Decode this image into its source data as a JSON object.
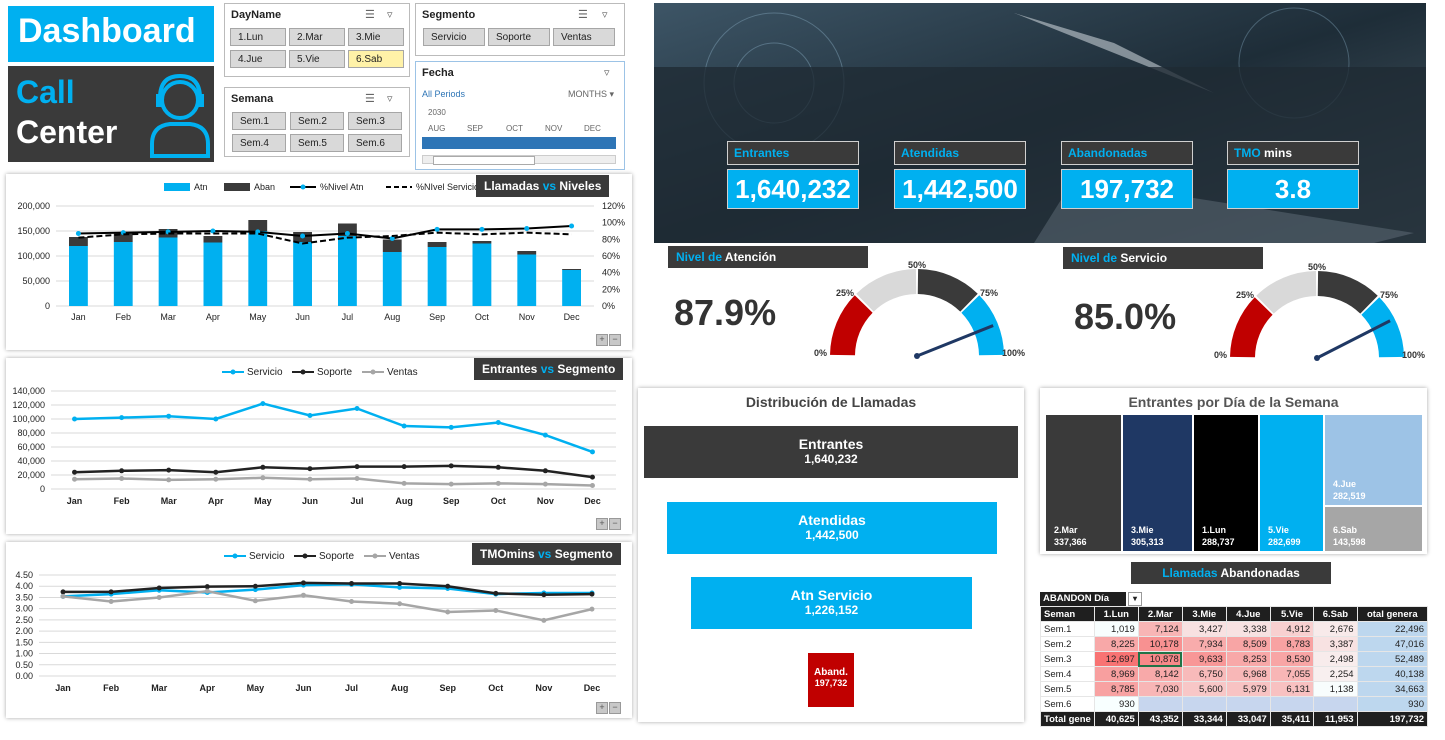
{
  "logo": {
    "line1": "Dashboard",
    "line2a": "Call",
    "line2b": "Center"
  },
  "slicers": {
    "dayname": {
      "title": "DayName",
      "items": [
        "1.Lun",
        "2.Mar",
        "3.Mie",
        "4.Jue",
        "5.Vie",
        "6.Sab"
      ],
      "selected": "6.Sab"
    },
    "segmento": {
      "title": "Segmento",
      "items": [
        "Servicio",
        "Soporte",
        "Ventas"
      ]
    },
    "semana": {
      "title": "Semana",
      "items": [
        "Sem.1",
        "Sem.2",
        "Sem.3",
        "Sem.4",
        "Sem.5",
        "Sem.6"
      ]
    },
    "fecha": {
      "title": "Fecha",
      "all_periods": "All Periods",
      "level": "MONTHS",
      "year": "2030",
      "months": [
        "AUG",
        "SEP",
        "OCT",
        "NOV",
        "DEC"
      ]
    }
  },
  "kpis": [
    {
      "label": "Entrantes",
      "label_suffix": "",
      "value": "1,640,232"
    },
    {
      "label": "Atendidas",
      "label_suffix": "",
      "value": "1,442,500"
    },
    {
      "label": "Abandonadas",
      "label_suffix": "",
      "value": "197,732"
    },
    {
      "label": "TMO",
      "label_suffix": " mins",
      "value": "3.8"
    }
  ],
  "gauges": [
    {
      "title_a": "Nivel de",
      "title_b": " Atención",
      "value_text": "87.9%",
      "value": 87.9,
      "ticks": [
        "0%",
        "25%",
        "50%",
        "75%",
        "100%"
      ]
    },
    {
      "title_a": "Nivel de",
      "title_b": " Servicio",
      "value_text": "85.0%",
      "value": 85.0,
      "ticks": [
        "0%",
        "25%",
        "50%",
        "75%",
        "100%"
      ]
    }
  ],
  "colors": {
    "blue": "#00b0f0",
    "dark": "#3a3a3a",
    "black": "#000000",
    "navy": "#1f3864",
    "gray": "#a6a6a6",
    "light_blue": "#9dc3e6",
    "red": "#c00000",
    "light_gray": "#d9d9d9"
  },
  "funnel": {
    "title": "Distribución de Llamadas",
    "items": [
      {
        "label": "Entrantes",
        "value": "1,640,232"
      },
      {
        "label": "Atendidas",
        "value": "1,442,500"
      },
      {
        "label": "Atn Servicio",
        "value": "1,226,152"
      },
      {
        "label": "Aband.",
        "value": "197,732"
      }
    ]
  },
  "treemap": {
    "title": "Entrantes por Día de la Semana",
    "items": [
      {
        "label": "2.Mar",
        "value": "337,366"
      },
      {
        "label": "3.Mie",
        "value": "305,313"
      },
      {
        "label": "1.Lun",
        "value": "288,737"
      },
      {
        "label": "5.Vie",
        "value": "282,699"
      },
      {
        "label": "4.Jue",
        "value": "282,519"
      },
      {
        "label": "6.Sab",
        "value": "143,598"
      }
    ]
  },
  "abandon": {
    "title_a": "Llamadas",
    "title_b": " Abandonadas",
    "pivot_title": "ABANDON Día",
    "row_header": "Seman",
    "columns": [
      "1.Lun",
      "2.Mar",
      "3.Mie",
      "4.Jue",
      "5.Vie",
      "6.Sab",
      "otal genera"
    ],
    "rows": [
      {
        "label": "Sem.1",
        "cells": [
          "1,019",
          "7,124",
          "3,427",
          "3,338",
          "4,912",
          "2,676",
          "22,496"
        ]
      },
      {
        "label": "Sem.2",
        "cells": [
          "8,225",
          "10,178",
          "7,934",
          "8,509",
          "8,783",
          "3,387",
          "47,016"
        ]
      },
      {
        "label": "Sem.3",
        "cells": [
          "12,697",
          "10,878",
          "9,633",
          "8,253",
          "8,530",
          "2,498",
          "52,489"
        ]
      },
      {
        "label": "Sem.4",
        "cells": [
          "8,969",
          "8,142",
          "6,750",
          "6,968",
          "7,055",
          "2,254",
          "40,138"
        ]
      },
      {
        "label": "Sem.5",
        "cells": [
          "8,785",
          "7,030",
          "5,600",
          "5,979",
          "6,131",
          "1,138",
          "34,663"
        ]
      },
      {
        "label": "Sem.6",
        "cells": [
          "930",
          "",
          "",
          "",
          "",
          "",
          "930"
        ]
      }
    ],
    "total_label": "Total gene",
    "totals": [
      "40,625",
      "43,352",
      "33,344",
      "33,047",
      "35,411",
      "11,953",
      "197,732"
    ]
  },
  "chart_data": [
    {
      "type": "bar",
      "title": "Llamadas vs Niveles",
      "title_a": "Llamadas",
      "title_vs": " vs ",
      "title_b": "Niveles",
      "categories": [
        "Jan",
        "Feb",
        "Mar",
        "Apr",
        "May",
        "Jun",
        "Jul",
        "Aug",
        "Sep",
        "Oct",
        "Nov",
        "Dec"
      ],
      "stacked": true,
      "series": [
        {
          "name": "Atn",
          "values": [
            120000,
            128000,
            137000,
            127000,
            150000,
            128000,
            140000,
            108000,
            118000,
            125000,
            103000,
            72000
          ]
        },
        {
          "name": "Aban",
          "values": [
            18000,
            17000,
            17000,
            13000,
            22000,
            20000,
            25000,
            25000,
            10000,
            5000,
            7000,
            2000
          ]
        },
        {
          "name": "%Nivel Atn",
          "values": [
            87,
            88,
            89,
            90,
            89,
            84,
            87,
            81,
            92,
            92,
            93,
            96
          ]
        },
        {
          "name": "%NIvel Servicio",
          "values": [
            82,
            86,
            87,
            87,
            87,
            75,
            82,
            84,
            88,
            86,
            88,
            86
          ]
        }
      ],
      "ylim": [
        0,
        200000
      ],
      "yticks": [
        "0",
        "50,000",
        "100,000",
        "150,000",
        "200,000"
      ],
      "y2lim": [
        0,
        120
      ],
      "y2ticks": [
        "0%",
        "20%",
        "40%",
        "60%",
        "80%",
        "100%",
        "120%"
      ],
      "grid": true,
      "legend": "top"
    },
    {
      "type": "line",
      "title": "Entrantes vs Segmento",
      "title_a": "Entrantes",
      "title_vs": " vs ",
      "title_b": "Segmento",
      "categories": [
        "Jan",
        "Feb",
        "Mar",
        "Apr",
        "May",
        "Jun",
        "Jul",
        "Aug",
        "Sep",
        "Oct",
        "Nov",
        "Dec"
      ],
      "series": [
        {
          "name": "Servicio",
          "values": [
            100000,
            102000,
            104000,
            100000,
            122000,
            105000,
            115000,
            90000,
            88000,
            95000,
            77000,
            53000
          ]
        },
        {
          "name": "Soporte",
          "values": [
            24000,
            26000,
            27000,
            24000,
            31000,
            29000,
            32000,
            32000,
            33000,
            31000,
            26000,
            17000
          ]
        },
        {
          "name": "Ventas",
          "values": [
            14000,
            15000,
            13000,
            14000,
            16000,
            14000,
            15000,
            8000,
            7000,
            8000,
            7000,
            5000
          ]
        }
      ],
      "ylim": [
        0,
        140000
      ],
      "yticks": [
        "0",
        "20,000",
        "40,000",
        "60,000",
        "80,000",
        "100,000",
        "120,000",
        "140,000"
      ],
      "grid": true,
      "legend": "top"
    },
    {
      "type": "line",
      "title": "TMOmins vs Segmento",
      "title_a": "TMOmins",
      "title_vs": " vs ",
      "title_b": "Segmento",
      "categories": [
        "Jan",
        "Feb",
        "Mar",
        "Apr",
        "May",
        "Jun",
        "Jul",
        "Aug",
        "Sep",
        "Oct",
        "Nov",
        "Dec"
      ],
      "series": [
        {
          "name": "Servicio",
          "values": [
            3.55,
            3.65,
            3.82,
            3.72,
            3.85,
            4.05,
            4.08,
            3.95,
            3.9,
            3.65,
            3.7,
            3.7
          ]
        },
        {
          "name": "Soporte",
          "values": [
            3.75,
            3.75,
            3.92,
            3.98,
            4.0,
            4.15,
            4.12,
            4.12,
            4.0,
            3.68,
            3.62,
            3.65
          ]
        },
        {
          "name": "Ventas",
          "values": [
            3.55,
            3.32,
            3.5,
            3.78,
            3.35,
            3.6,
            3.32,
            3.22,
            2.85,
            2.92,
            2.48,
            2.98
          ]
        }
      ],
      "ylim": [
        0,
        4.5
      ],
      "yticks": [
        "0.00",
        "0.50",
        "1.00",
        "1.50",
        "2.00",
        "2.50",
        "3.00",
        "3.50",
        "4.00",
        "4.50"
      ],
      "grid": true,
      "legend": "top"
    }
  ]
}
